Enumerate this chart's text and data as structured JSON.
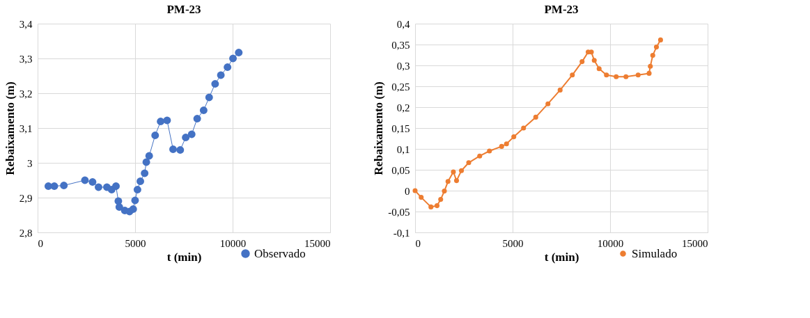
{
  "chart_data": [
    {
      "type": "line",
      "title": "PM-23",
      "xlabel": "t (min)",
      "ylabel": "Rebaixamento (m)",
      "marker": "circle",
      "grid": true,
      "legend": "bottom right",
      "xlim": [
        0,
        15000
      ],
      "xticks": [
        0,
        5000,
        10000,
        15000
      ],
      "ylim": [
        2.8,
        3.4
      ],
      "yticks": [
        {
          "value": 2.8,
          "label": "2,8"
        },
        {
          "value": 2.9,
          "label": "2,9"
        },
        {
          "value": 3,
          "label": "3"
        },
        {
          "value": 3.1,
          "label": "3,1"
        },
        {
          "value": 3.2,
          "label": "3,2"
        },
        {
          "value": 3.3,
          "label": "3,3"
        },
        {
          "value": 3.4,
          "label": "3,4"
        }
      ],
      "series": [
        {
          "name": "Observado",
          "color": "#4472c4",
          "x": [
            551,
            857,
            1347,
            2426,
            2818,
            3124,
            3553,
            3798,
            4018,
            4140,
            4190,
            4471,
            4716,
            4900,
            4998,
            5120,
            5268,
            5488,
            5574,
            5721,
            6027,
            6309,
            6640,
            6946,
            7313,
            7595,
            7901,
            8183,
            8514,
            8796,
            9102,
            9396,
            9738,
            10020,
            10314
          ],
          "values": [
            2.933,
            2.933,
            2.935,
            2.95,
            2.945,
            2.93,
            2.93,
            2.923,
            2.933,
            2.89,
            2.873,
            2.863,
            2.86,
            2.867,
            2.892,
            2.923,
            2.947,
            2.97,
            3.002,
            3.02,
            3.079,
            3.119,
            3.122,
            3.039,
            3.037,
            3.073,
            3.082,
            3.127,
            3.151,
            3.188,
            3.227,
            3.252,
            3.275,
            3.3,
            3.317
          ]
        }
      ]
    },
    {
      "type": "line",
      "title": "PM-23",
      "xlabel": "t (min)",
      "ylabel": "Rebaixamento (m)",
      "marker": "circle",
      "grid": true,
      "legend": "bottom right",
      "xlim": [
        0,
        15000
      ],
      "xticks": [
        0,
        5000,
        10000,
        15000
      ],
      "ylim": [
        -0.1,
        0.4
      ],
      "yticks": [
        {
          "value": -0.1,
          "label": "-0,1"
        },
        {
          "value": -0.05,
          "label": "-0,05"
        },
        {
          "value": 0,
          "label": "0"
        },
        {
          "value": 0.05,
          "label": "0,05"
        },
        {
          "value": 0.1,
          "label": "0,1"
        },
        {
          "value": 0.15,
          "label": "0,15"
        },
        {
          "value": 0.2,
          "label": "0,2"
        },
        {
          "value": 0.25,
          "label": "0,25"
        },
        {
          "value": 0.3,
          "label": "0,3"
        },
        {
          "value": 0.35,
          "label": "0,35"
        },
        {
          "value": 0.4,
          "label": "0,4"
        }
      ],
      "series": [
        {
          "name": "Simulado",
          "color": "#ed7d31",
          "x": [
            0,
            312,
            812,
            1125,
            1312,
            1500,
            1687,
            1962,
            2125,
            2375,
            2750,
            3312,
            3812,
            4437,
            4687,
            5062,
            5562,
            6187,
            6812,
            7437,
            8062,
            8562,
            8875,
            9037,
            9187,
            9437,
            9812,
            10312,
            10812,
            11437,
            12000,
            12062,
            12187,
            12375,
            12587
          ],
          "values": [
            0,
            -0.016,
            -0.039,
            -0.036,
            -0.021,
            -0.001,
            0.022,
            0.045,
            0.024,
            0.048,
            0.067,
            0.083,
            0.095,
            0.106,
            0.112,
            0.129,
            0.15,
            0.176,
            0.208,
            0.241,
            0.277,
            0.309,
            0.332,
            0.332,
            0.312,
            0.292,
            0.277,
            0.273,
            0.273,
            0.277,
            0.281,
            0.298,
            0.324,
            0.344,
            0.361
          ]
        }
      ]
    }
  ]
}
